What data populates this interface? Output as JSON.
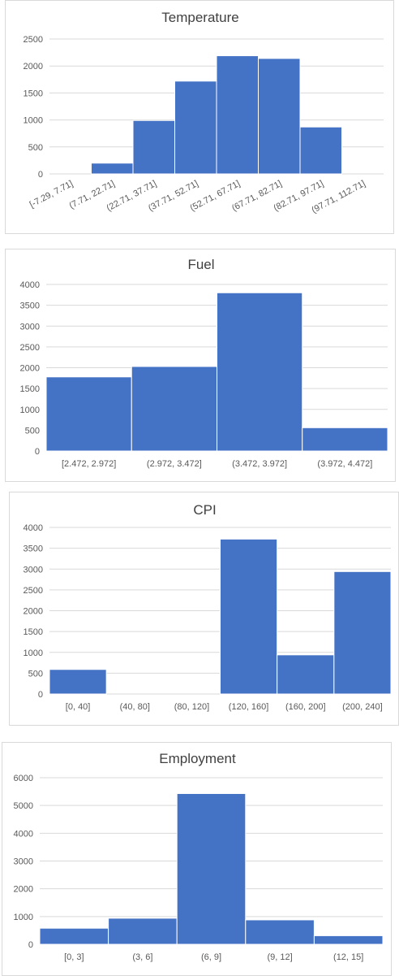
{
  "chart_data": [
    {
      "type": "bar",
      "title": "Temperature",
      "categories": [
        "[-7.29, 7.71]",
        "(7.71, 22.71]",
        "(22.71, 37.71]",
        "(37.71, 52.71]",
        "(52.71, 67.71]",
        "(67.71, 82.71]",
        "(82.71, 97.71]",
        "(97.71, 112.71]"
      ],
      "values": [
        0,
        200,
        990,
        1720,
        2190,
        2140,
        870,
        0
      ],
      "ylim": [
        0,
        2500
      ],
      "yticks": [
        0,
        500,
        1000,
        1500,
        2000,
        2500
      ],
      "xlabel": "",
      "ylabel": "",
      "grid": true,
      "color": "#4472c4"
    },
    {
      "type": "bar",
      "title": "Fuel",
      "categories": [
        "[2.472, 2.972]",
        "(2.972, 3.472]",
        "(3.472, 3.972]",
        "(3.972, 4.472]"
      ],
      "values": [
        1780,
        2030,
        3800,
        560
      ],
      "ylim": [
        0,
        4000
      ],
      "yticks": [
        0,
        500,
        1000,
        1500,
        2000,
        2500,
        3000,
        3500,
        4000
      ],
      "xlabel": "",
      "ylabel": "",
      "grid": true,
      "color": "#4472c4"
    },
    {
      "type": "bar",
      "title": "CPI",
      "categories": [
        "[0, 40]",
        "(40, 80]",
        "(80, 120]",
        "(120, 160]",
        "(160, 200]",
        "(200, 240]"
      ],
      "values": [
        590,
        0,
        0,
        3720,
        940,
        2940
      ],
      "ylim": [
        0,
        4000
      ],
      "yticks": [
        0,
        500,
        1000,
        1500,
        2000,
        2500,
        3000,
        3500,
        4000
      ],
      "xlabel": "",
      "ylabel": "",
      "grid": true,
      "color": "#4472c4"
    },
    {
      "type": "bar",
      "title": "Employment",
      "categories": [
        "[0, 3]",
        "(3, 6]",
        "(6, 9]",
        "(9, 12]",
        "(12, 15]"
      ],
      "values": [
        580,
        940,
        5430,
        880,
        310
      ],
      "ylim": [
        0,
        6000
      ],
      "yticks": [
        0,
        1000,
        2000,
        3000,
        4000,
        5000,
        6000
      ],
      "xlabel": "",
      "ylabel": "",
      "grid": true,
      "color": "#4472c4"
    }
  ]
}
